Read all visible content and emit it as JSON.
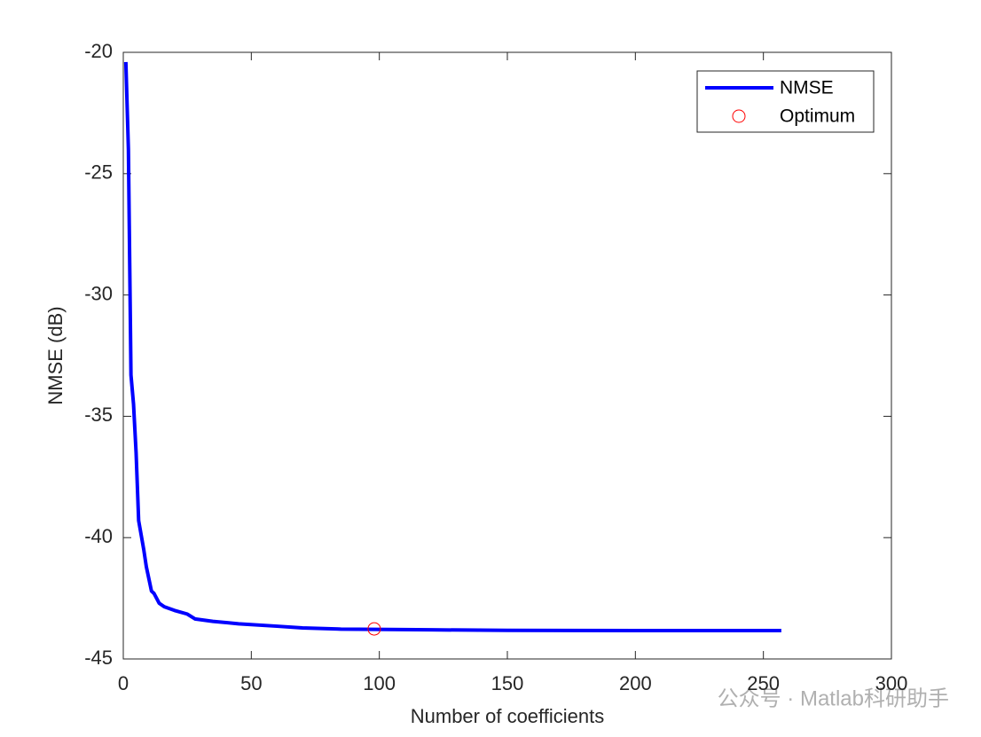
{
  "chart_data": {
    "type": "line",
    "xlabel": "Number of coefficients",
    "ylabel": "NMSE (dB)",
    "xlim": [
      0,
      300
    ],
    "xticks": [
      0,
      50,
      100,
      150,
      200,
      250,
      300
    ],
    "ylim": [
      -45,
      -20
    ],
    "yticks": [
      -45,
      -40,
      -35,
      -30,
      -25,
      -20
    ],
    "legend": "top-right",
    "series": [
      {
        "name": "NMSE",
        "color": "#0000ff",
        "style": "line",
        "x": [
          1,
          2,
          3,
          4,
          5,
          6,
          7,
          8,
          9,
          10,
          11,
          12,
          13,
          14,
          16,
          20,
          25,
          28,
          35,
          45,
          60,
          70,
          85,
          98,
          120,
          150,
          200,
          257
        ],
        "values": [
          -20.4,
          -24.0,
          -33.3,
          -34.5,
          -36.5,
          -39.3,
          -39.9,
          -40.5,
          -41.2,
          -41.7,
          -42.2,
          -42.3,
          -42.5,
          -42.7,
          -42.85,
          -43.0,
          -43.15,
          -43.35,
          -43.45,
          -43.55,
          -43.65,
          -43.72,
          -43.77,
          -43.78,
          -43.8,
          -43.82,
          -43.83,
          -43.83
        ]
      },
      {
        "name": "Optimum",
        "color": "#ff0000",
        "style": "circle",
        "x": [
          98
        ],
        "values": [
          -43.76
        ]
      }
    ],
    "watermark": "公众号 · Matlab科研助手"
  }
}
